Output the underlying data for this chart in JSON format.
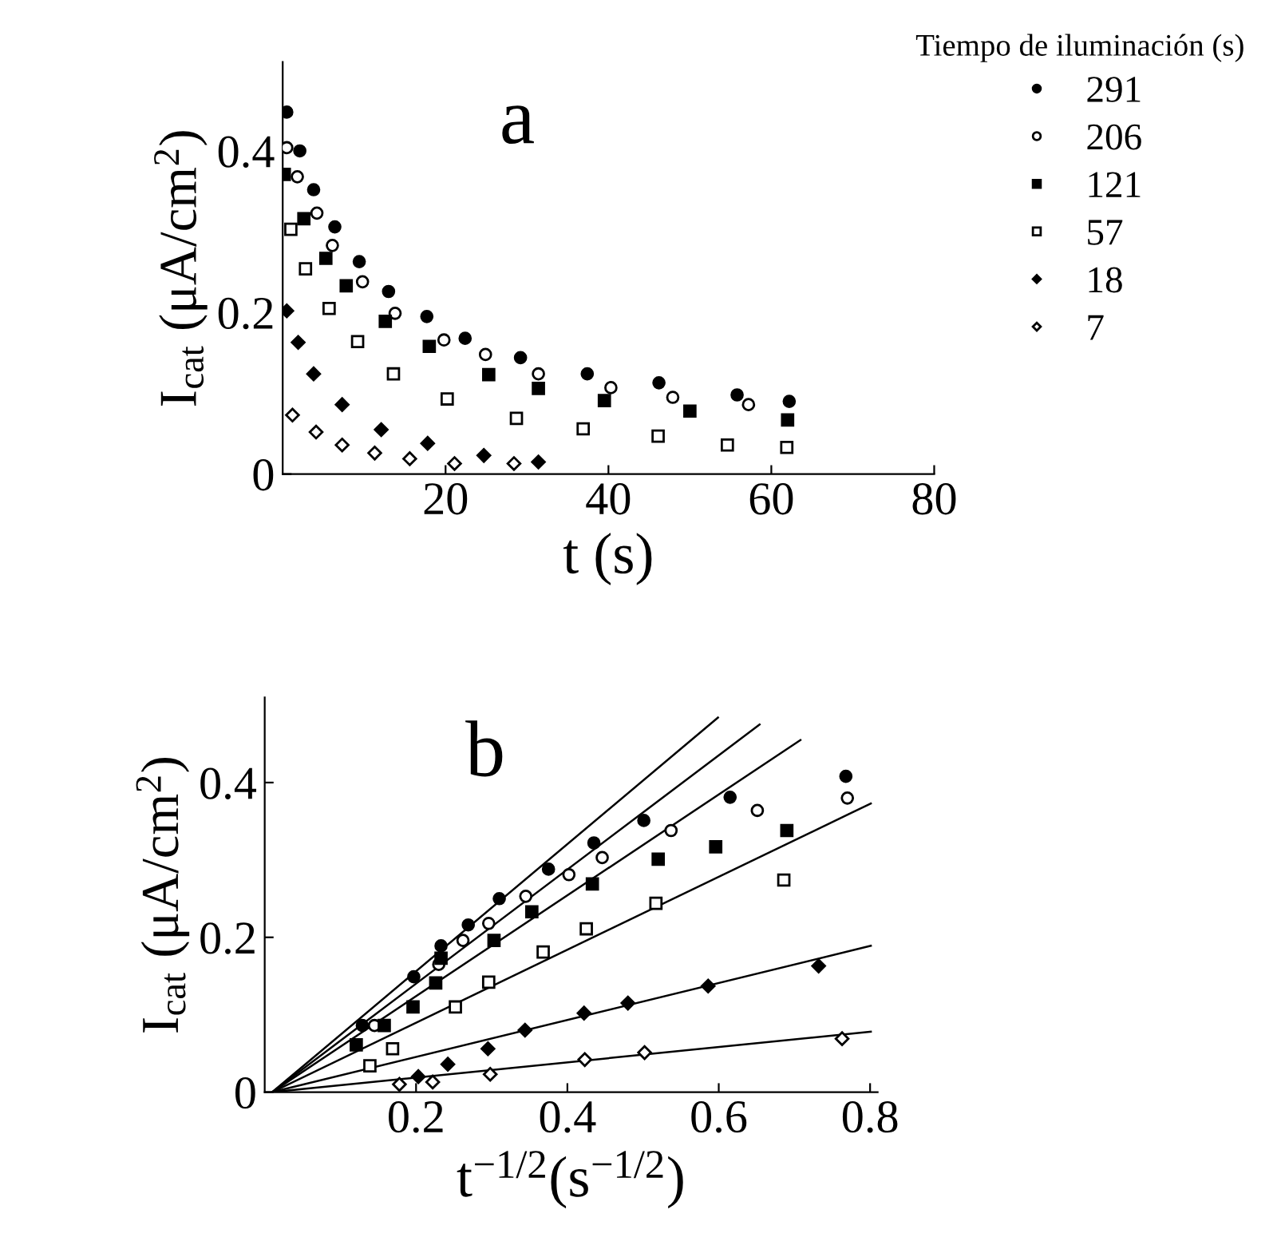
{
  "chart_data": [
    {
      "type": "scatter",
      "xlabel": "t (s)",
      "ylabel": "I$_{cat}$ (μA/cm$^{2}$)",
      "legend_title": "Tiempo de iluminación (s)",
      "legend": "right",
      "annotations": [
        "a"
      ],
      "xlim": [
        0,
        80
      ],
      "ylim": [
        0,
        0.51
      ],
      "xticks": [
        20,
        40,
        60,
        80
      ],
      "yticks": [
        0,
        0.2,
        0.4
      ],
      "grid": false,
      "series": [
        {
          "name": "291",
          "color": "#000000",
          "marker": "circle",
          "x": [
            0.5,
            2.1,
            3.8,
            6.4,
            9.4,
            13,
            17.7,
            22.4,
            29.2,
            37.4,
            46.2,
            55.8,
            62.2
          ],
          "values": [
            0.448,
            0.4,
            0.352,
            0.306,
            0.263,
            0.226,
            0.195,
            0.168,
            0.144,
            0.124,
            0.113,
            0.098,
            0.09
          ]
        },
        {
          "name": "206",
          "color": "#000000",
          "marker": "circle",
          "x": [
            0.5,
            1.8,
            4.2,
            6.1,
            9.8,
            13.8,
            19.8,
            24.9,
            31.4,
            40.3,
            47.9,
            57.2
          ],
          "values": [
            0.404,
            0.368,
            0.323,
            0.283,
            0.238,
            0.199,
            0.166,
            0.148,
            0.124,
            0.107,
            0.095,
            0.086
          ]
        },
        {
          "name": "121",
          "color": "#000000",
          "marker": "square",
          "x": [
            0.2,
            2.6,
            5.3,
            7.8,
            12.6,
            18,
            25.3,
            31.4,
            39.5,
            50,
            62
          ],
          "values": [
            0.371,
            0.316,
            0.267,
            0.233,
            0.189,
            0.158,
            0.123,
            0.106,
            0.091,
            0.078,
            0.067
          ]
        },
        {
          "name": "57",
          "color": "#000000",
          "marker": "square",
          "x": [
            1,
            2.8,
            5.7,
            9.2,
            13.6,
            20.2,
            28.7,
            36.9,
            46.1,
            54.6,
            61.9
          ],
          "values": [
            0.303,
            0.254,
            0.205,
            0.164,
            0.124,
            0.093,
            0.069,
            0.056,
            0.047,
            0.036,
            0.033
          ]
        },
        {
          "name": "18",
          "color": "#000000",
          "marker": "diamond",
          "x": [
            0.5,
            1.9,
            3.8,
            7.3,
            12.1,
            17.8,
            24.7,
            31.4
          ],
          "values": [
            0.202,
            0.163,
            0.124,
            0.086,
            0.055,
            0.038,
            0.023,
            0.015
          ]
        },
        {
          "name": "7",
          "color": "#000000",
          "marker": "diamond",
          "x": [
            1.2,
            4.1,
            7.3,
            11.3,
            15.6,
            21.1,
            28.4
          ],
          "values": [
            0.073,
            0.052,
            0.036,
            0.026,
            0.019,
            0.013,
            0.013
          ]
        }
      ]
    },
    {
      "type": "scatter",
      "xlabel": "t$^{−1/2}$(s$^{−1/2}$)",
      "ylabel": "I$_{cat}$ (μA/cm$^{2}$)",
      "annotations": [
        "b"
      ],
      "xlim": [
        0,
        0.81
      ],
      "ylim": [
        0,
        0.51
      ],
      "xticks": [
        0.2,
        0.4,
        0.6,
        0.8
      ],
      "yticks": [
        0,
        0.2,
        0.4
      ],
      "grid": false,
      "series": [
        {
          "color": "#000000",
          "marker": "circle",
          "x": [
            0.129,
            0.197,
            0.233,
            0.269,
            0.31,
            0.375,
            0.435,
            0.501,
            0.615,
            0.768
          ],
          "values": [
            0.086,
            0.149,
            0.189,
            0.216,
            0.25,
            0.288,
            0.322,
            0.351,
            0.381,
            0.408
          ]
        },
        {
          "color": "#000000",
          "marker": "circle",
          "x": [
            0.145,
            0.23,
            0.262,
            0.296,
            0.345,
            0.402,
            0.446,
            0.537,
            0.651,
            0.77
          ],
          "values": [
            0.086,
            0.165,
            0.196,
            0.218,
            0.253,
            0.281,
            0.303,
            0.338,
            0.364,
            0.38
          ]
        },
        {
          "color": "#000000",
          "marker": "square",
          "x": [
            0.121,
            0.158,
            0.196,
            0.226,
            0.233,
            0.303,
            0.353,
            0.433,
            0.52,
            0.596,
            0.69
          ],
          "values": [
            0.061,
            0.086,
            0.11,
            0.141,
            0.173,
            0.196,
            0.233,
            0.269,
            0.301,
            0.317,
            0.338
          ]
        },
        {
          "color": "#000000",
          "marker": "square",
          "x": [
            0.139,
            0.169,
            0.252,
            0.296,
            0.368,
            0.425,
            0.517,
            0.686
          ],
          "values": [
            0.034,
            0.056,
            0.11,
            0.142,
            0.181,
            0.211,
            0.244,
            0.274
          ]
        },
        {
          "color": "#000000",
          "marker": "diamond",
          "x": [
            0.203,
            0.242,
            0.295,
            0.344,
            0.422,
            0.48,
            0.586,
            0.732
          ],
          "values": [
            0.02,
            0.036,
            0.056,
            0.08,
            0.102,
            0.115,
            0.137,
            0.163
          ]
        },
        {
          "color": "#000000",
          "marker": "diamond",
          "x": [
            0.178,
            0.222,
            0.298,
            0.423,
            0.502,
            0.763
          ],
          "values": [
            0.01,
            0.013,
            0.023,
            0.042,
            0.051,
            0.069
          ]
        },
        {
          "type": "line",
          "color": "#000000",
          "line_style": "solid",
          "x": [
            0.01,
            0.599
          ],
          "values": [
            0,
            0.484
          ]
        },
        {
          "type": "line",
          "color": "#000000",
          "line_style": "solid",
          "x": [
            0.01,
            0.654
          ],
          "values": [
            0,
            0.475
          ]
        },
        {
          "type": "line",
          "color": "#000000",
          "line_style": "solid",
          "x": [
            0.01,
            0.708
          ],
          "values": [
            0,
            0.455
          ]
        },
        {
          "type": "line",
          "color": "#000000",
          "line_style": "solid",
          "x": [
            0.01,
            0.801
          ],
          "values": [
            0,
            0.373
          ]
        },
        {
          "type": "line",
          "color": "#000000",
          "line_style": "solid",
          "x": [
            0.01,
            0.801
          ],
          "values": [
            0,
            0.189
          ]
        },
        {
          "type": "line",
          "color": "#000000",
          "line_style": "solid",
          "x": [
            0.01,
            0.801
          ],
          "values": [
            0,
            0.078
          ]
        }
      ]
    }
  ]
}
